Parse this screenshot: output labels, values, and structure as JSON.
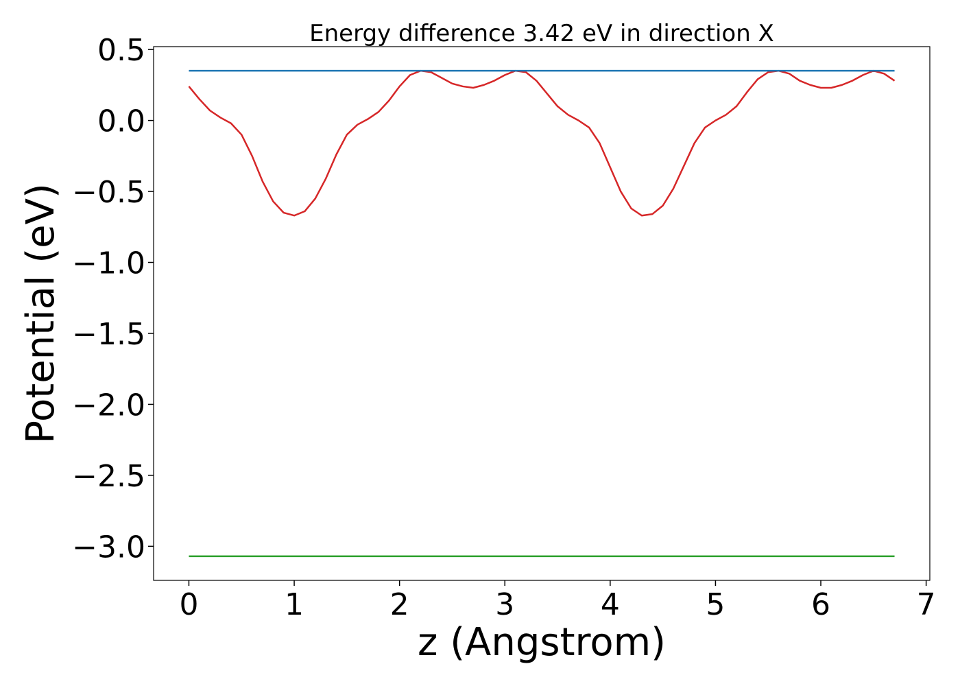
{
  "chart_data": {
    "type": "line",
    "title": "Energy difference 3.42 eV in direction X",
    "xlabel": "z (Angstrom)",
    "ylabel": "Potential (eV)",
    "xlim": [
      -0.335,
      7.035
    ],
    "ylim": [
      -3.24,
      0.52
    ],
    "xticks": [
      0,
      1,
      2,
      3,
      4,
      5,
      6,
      7
    ],
    "yticks": [
      0.5,
      {
        "value": 0.0,
        "label": "0.0"
      },
      {
        "value": -0.5,
        "label": "−0.5"
      },
      {
        "value": -1.0,
        "label": "−1.0"
      },
      {
        "value": -1.5,
        "label": "−1.5"
      },
      {
        "value": -2.0,
        "label": "−2.0"
      },
      {
        "value": -2.5,
        "label": "−2.5"
      },
      {
        "value": -3.0,
        "label": "−3.0"
      }
    ],
    "series": [
      {
        "color": "#d62728",
        "x": [
          0,
          0.1,
          0.2,
          0.3,
          0.4,
          0.5,
          0.6,
          0.7,
          0.8,
          0.9,
          1.0,
          1.1,
          1.2,
          1.3,
          1.4,
          1.5,
          1.6,
          1.7,
          1.8,
          1.9,
          2.0,
          2.1,
          2.2,
          2.3,
          2.4,
          2.5,
          2.6,
          2.7,
          2.8,
          2.9,
          3.0,
          3.1,
          3.2,
          3.3,
          3.4,
          3.5,
          3.6,
          3.7,
          3.8,
          3.9,
          4.0,
          4.1,
          4.2,
          4.3,
          4.4,
          4.5,
          4.6,
          4.7,
          4.8,
          4.9,
          5.0,
          5.1,
          5.2,
          5.3,
          5.4,
          5.5,
          5.6,
          5.7,
          5.8,
          5.9,
          6.0,
          6.1,
          6.2,
          6.3,
          6.4,
          6.5,
          6.6,
          6.7
        ],
        "values": [
          0.24,
          0.15,
          0.07,
          0.02,
          -0.02,
          -0.1,
          -0.25,
          -0.43,
          -0.57,
          -0.65,
          -0.67,
          -0.64,
          -0.55,
          -0.41,
          -0.24,
          -0.1,
          -0.03,
          0.01,
          0.06,
          0.14,
          0.24,
          0.32,
          0.35,
          0.34,
          0.3,
          0.26,
          0.24,
          0.23,
          0.25,
          0.28,
          0.32,
          0.35,
          0.34,
          0.28,
          0.19,
          0.1,
          0.04,
          0.0,
          -0.05,
          -0.16,
          -0.33,
          -0.5,
          -0.62,
          -0.67,
          -0.66,
          -0.6,
          -0.48,
          -0.32,
          -0.16,
          -0.05,
          0.0,
          0.04,
          0.1,
          0.2,
          0.29,
          0.34,
          0.35,
          0.33,
          0.28,
          0.25,
          0.23,
          0.23,
          0.25,
          0.28,
          0.32,
          0.35,
          0.33,
          0.28
        ]
      },
      {
        "color": "#1f77b4",
        "x": [
          0,
          6.7
        ],
        "values": [
          0.35,
          0.35
        ]
      },
      {
        "color": "#2ca02c",
        "x": [
          0,
          6.7
        ],
        "values": [
          -3.07,
          -3.07
        ]
      }
    ]
  }
}
